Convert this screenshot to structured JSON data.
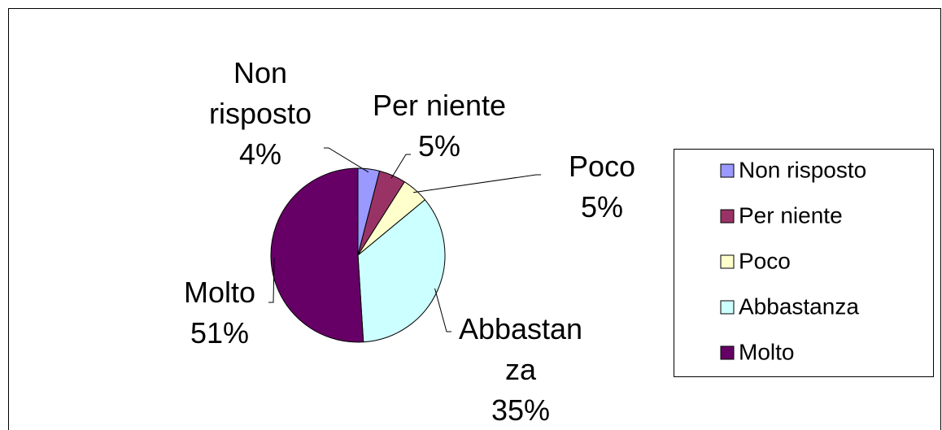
{
  "chart_data": {
    "type": "pie",
    "categories": [
      "Non risposto",
      "Per niente",
      "Poco",
      "Abbastanza",
      "Molto"
    ],
    "values": [
      4,
      5,
      5,
      35,
      51
    ],
    "value_labels": [
      "4%",
      "5%",
      "5%",
      "35%",
      "51%"
    ],
    "colors": [
      "#9999ff",
      "#993366",
      "#ffffcc",
      "#ccffff",
      "#660066"
    ],
    "legend": "right"
  }
}
